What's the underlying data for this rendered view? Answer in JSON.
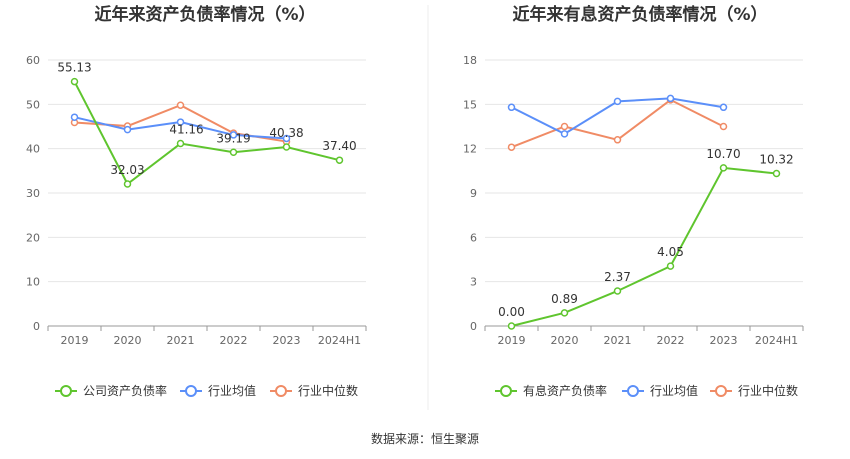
{
  "source_label": "数据来源：恒生聚源",
  "colors": {
    "company": "#5fc52e",
    "industry_avg": "#5b8ff9",
    "industry_median": "#f08b65",
    "grid": "#e6e6e6",
    "axis": "#999999"
  },
  "chart_data": [
    {
      "type": "line",
      "title": "近年来资产负债率情况（%）",
      "categories": [
        "2019",
        "2020",
        "2021",
        "2022",
        "2023",
        "2024H1"
      ],
      "ylim": [
        0,
        60
      ],
      "yticks": [
        0,
        10,
        20,
        30,
        40,
        50,
        60
      ],
      "ytick_labels": [
        "0",
        "10",
        "20",
        "30",
        "40",
        "50",
        "60"
      ],
      "grid": true,
      "legend_position": "bottom",
      "series": [
        {
          "name": "公司资产负债率",
          "key": "company",
          "values": [
            55.13,
            32.03,
            41.16,
            39.19,
            40.38,
            37.4
          ],
          "labels": [
            "55.13",
            "32.03",
            "41.16",
            "39.19",
            "40.38",
            "37.40"
          ]
        },
        {
          "name": "行业均值",
          "key": "industry_avg",
          "values": [
            47.1,
            44.3,
            46.0,
            43.1,
            42.3,
            null
          ]
        },
        {
          "name": "行业中位数",
          "key": "industry_median",
          "values": [
            45.9,
            45.1,
            49.8,
            43.5,
            41.6,
            null
          ]
        }
      ]
    },
    {
      "type": "line",
      "title": "近年来有息资产负债率情况（%）",
      "categories": [
        "2019",
        "2020",
        "2021",
        "2022",
        "2023",
        "2024H1"
      ],
      "ylim": [
        0,
        18
      ],
      "yticks": [
        0,
        3,
        6,
        9,
        12,
        15,
        18
      ],
      "ytick_labels": [
        "0",
        "3",
        "6",
        "9",
        "12",
        "15",
        "18"
      ],
      "grid": true,
      "legend_position": "bottom",
      "series": [
        {
          "name": "有息资产负债率",
          "key": "company",
          "values": [
            0.0,
            0.89,
            2.37,
            4.05,
            10.7,
            10.32
          ],
          "labels": [
            "0.00",
            "0.89",
            "2.37",
            "4.05",
            "10.70",
            "10.32"
          ]
        },
        {
          "name": "行业均值",
          "key": "industry_avg",
          "values": [
            14.8,
            13.0,
            15.2,
            15.4,
            14.8,
            null
          ]
        },
        {
          "name": "行业中位数",
          "key": "industry_median",
          "values": [
            12.1,
            13.5,
            12.6,
            15.3,
            13.5,
            null
          ]
        }
      ]
    }
  ]
}
